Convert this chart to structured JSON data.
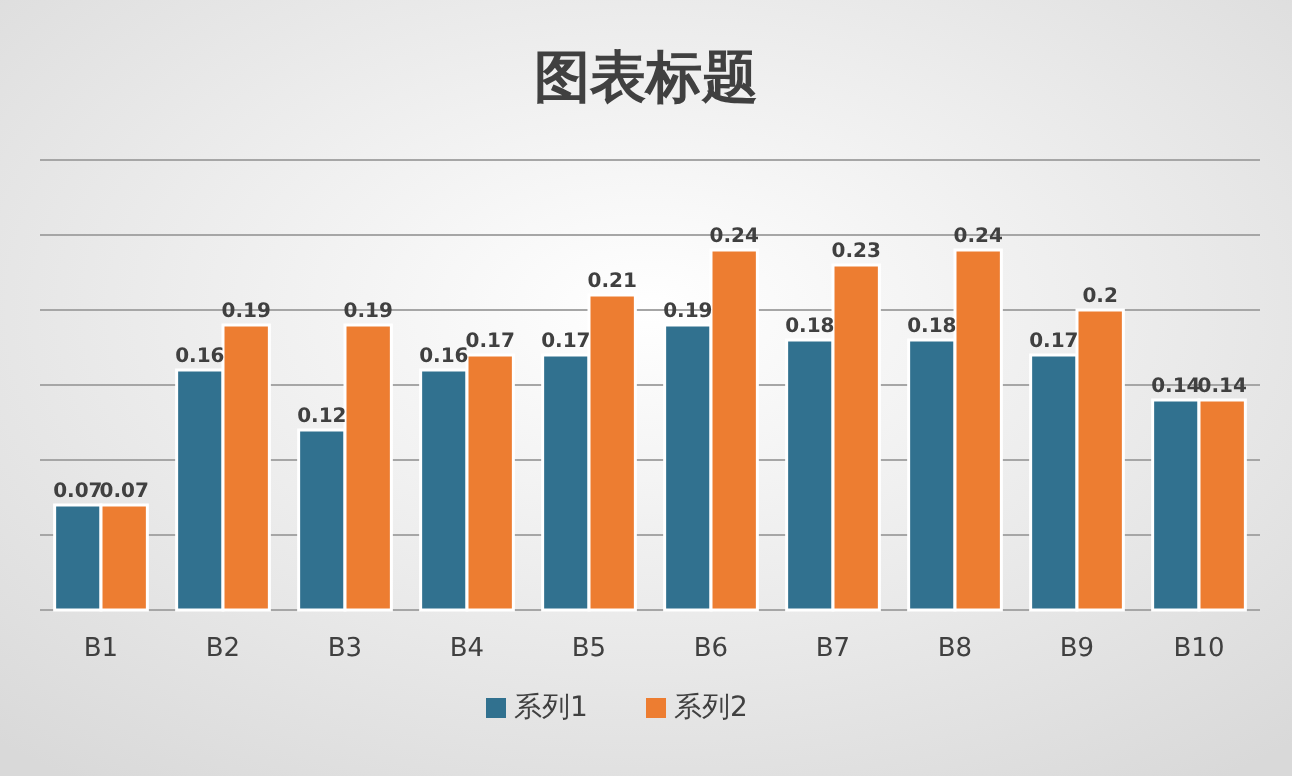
{
  "chart_data": {
    "type": "bar",
    "title": "图表标题",
    "categories": [
      "B1",
      "B2",
      "B3",
      "B4",
      "B5",
      "B6",
      "B7",
      "B8",
      "B9",
      "B10"
    ],
    "series": [
      {
        "name": "系列1",
        "color": "#31718f",
        "values": [
          0.07,
          0.16,
          0.12,
          0.16,
          0.17,
          0.19,
          0.18,
          0.18,
          0.17,
          0.14
        ]
      },
      {
        "name": "系列2",
        "color": "#ed7d31",
        "values": [
          0.07,
          0.19,
          0.19,
          0.17,
          0.21,
          0.24,
          0.23,
          0.24,
          0.2,
          0.14
        ]
      }
    ],
    "ylim": [
      0,
      0.3
    ],
    "yticks": [
      {
        "value": 0,
        "label": null
      },
      {
        "value": 0.05,
        "label": null
      },
      {
        "value": 0.1,
        "label": null
      },
      {
        "value": 0.15,
        "label": null
      },
      {
        "value": 0.2,
        "label": null
      },
      {
        "value": 0.25,
        "label": null
      },
      {
        "value": 0.3,
        "label": null
      }
    ],
    "grid": "y",
    "legend": "bottom",
    "data_labels": true
  }
}
